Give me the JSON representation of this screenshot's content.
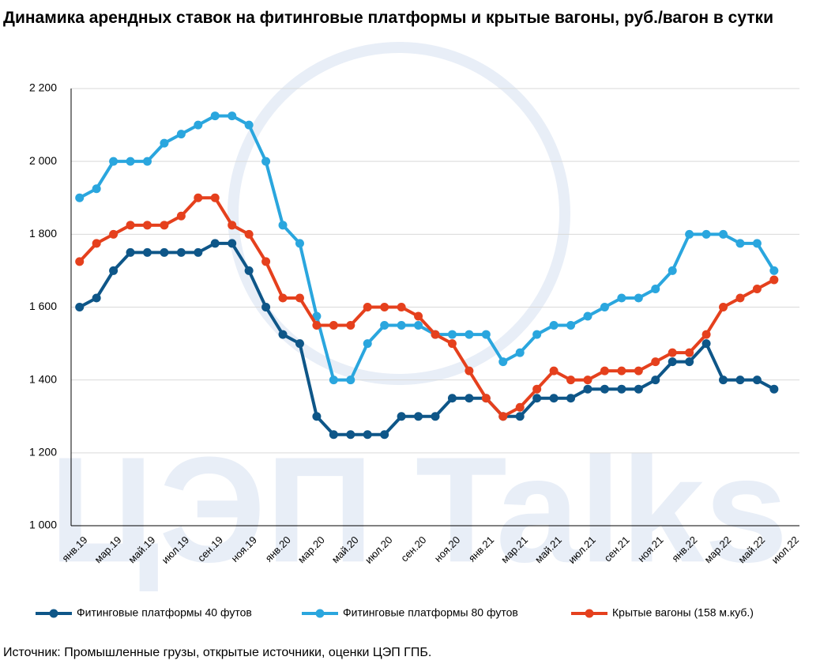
{
  "chart_data": {
    "type": "line",
    "title": "Динамика арендных ставок на фитинговые платформы и крытые вагоны, руб./вагон в сутки",
    "source": "Источник: Промышленные грузы, открытые источники, оценки ЦЭП ГПБ.",
    "watermark": "ЦЭП Talks",
    "categories": [
      "янв.19",
      null,
      "мар.19",
      null,
      "май.19",
      null,
      "июл.19",
      null,
      "сен.19",
      null,
      "ноя.19",
      null,
      "янв.20",
      null,
      "мар.20",
      null,
      "май.20",
      null,
      "июл.20",
      null,
      "сен.20",
      null,
      "ноя.20",
      null,
      "янв.21",
      null,
      "мар.21",
      null,
      "май.21",
      null,
      "июл.21",
      null,
      "сен.21",
      null,
      "ноя.21",
      null,
      "янв.22",
      null,
      "мар.22",
      null,
      "май.22",
      null,
      "июл.22"
    ],
    "series": [
      {
        "name": "Фитинговые платформы 40 футов",
        "color": "#0e5688",
        "values": [
          1600,
          1625,
          1700,
          1750,
          1750,
          1750,
          1750,
          1750,
          1775,
          1775,
          1700,
          1600,
          1525,
          1500,
          1300,
          1250,
          1250,
          1250,
          1250,
          1300,
          1300,
          1300,
          1350,
          1350,
          1350,
          1300,
          1300,
          1350,
          1350,
          1350,
          1375,
          1375,
          1375,
          1375,
          1400,
          1450,
          1450,
          1500,
          1400,
          1400,
          1400,
          1375,
          null
        ]
      },
      {
        "name": "Фитинговые платформы 80 футов",
        "color": "#2aa6de",
        "values": [
          1900,
          1925,
          2000,
          2000,
          2000,
          2050,
          2075,
          2100,
          2125,
          2125,
          2100,
          2000,
          1825,
          1775,
          1575,
          1400,
          1400,
          1500,
          1550,
          1550,
          1550,
          1525,
          1525,
          1525,
          1525,
          1450,
          1475,
          1525,
          1550,
          1550,
          1575,
          1600,
          1625,
          1625,
          1650,
          1700,
          1800,
          1800,
          1800,
          1775,
          1775,
          1700,
          null
        ]
      },
      {
        "name": "Крытые вагоны (158 м.куб.)",
        "color": "#e5401d",
        "values": [
          1725,
          1775,
          1800,
          1825,
          1825,
          1825,
          1850,
          1900,
          1900,
          1825,
          1800,
          1725,
          1625,
          1625,
          1550,
          1550,
          1550,
          1600,
          1600,
          1600,
          1575,
          1525,
          1500,
          1425,
          1350,
          1300,
          1325,
          1375,
          1425,
          1400,
          1400,
          1425,
          1425,
          1425,
          1450,
          1475,
          1475,
          1525,
          1600,
          1625,
          1650,
          1675,
          null
        ]
      }
    ],
    "ylim": [
      1000,
      2200
    ],
    "yticks": [
      {
        "value": 1000,
        "label": "1 000"
      },
      {
        "value": 1200,
        "label": "1 200"
      },
      {
        "value": 1400,
        "label": "1 400"
      },
      {
        "value": 1600,
        "label": "1 600"
      },
      {
        "value": 1800,
        "label": "1 800"
      },
      {
        "value": 2000,
        "label": "2 000"
      },
      {
        "value": 2200,
        "label": "2 200"
      }
    ],
    "grid": true,
    "legend": "bottom"
  }
}
